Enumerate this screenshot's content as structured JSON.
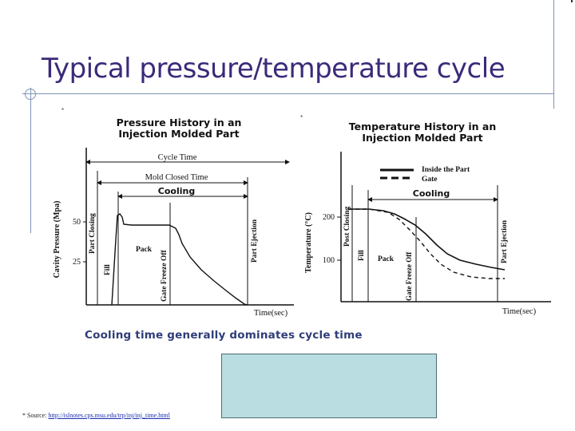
{
  "slide": {
    "title": "Typical pressure/temperature cycle",
    "caption": "Cooling time generally dominates cycle time",
    "source_prefix": "* Source:",
    "source_link": "http://islnotes.cps.msu.edu/trp/inj/inj_time.html",
    "asterisk_mark": "*"
  },
  "pressure_chart": {
    "title_line1": "Pressure History in an",
    "title_line2": "Injection Molded Part",
    "ylabel": "Cavity Pressure (Mpa)",
    "xlabel": "Time(sec)",
    "yticks": [
      "50",
      "25"
    ],
    "bracket_cycle": "Cycle Time",
    "bracket_mold": "Mold Closed Time",
    "bracket_cooling": "Cooling",
    "phase_part_closing": "Part Closing",
    "phase_fill": "Fill",
    "phase_pack": "Pack",
    "phase_gate_freeze": "Gate Freeze Off",
    "phase_part_ejection": "Part Ejection"
  },
  "temperature_chart": {
    "title_line1": "Temperature History in an",
    "title_line2": "Injection Molded Part",
    "ylabel": "Temperature (°C)",
    "xlabel": "Time(sec)",
    "yticks": [
      "200",
      "100"
    ],
    "legend_inside": "Inside the Part",
    "legend_gate": "Gate",
    "bracket_cooling": "Cooling",
    "phase_post_closing": "Post Closing",
    "phase_fill": "Fill",
    "phase_pack": "Pack",
    "phase_gate_freeze": "Gate Freeze Off",
    "phase_part_ejection": "Part Ejection"
  }
}
